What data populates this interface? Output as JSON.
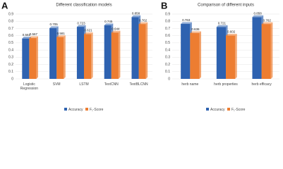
{
  "chart_data": [
    {
      "type": "bar",
      "panel_label": "A",
      "title": "Different classification models",
      "categories": [
        "Logistic Regression",
        "SVM",
        "LSTM",
        "TextCNN",
        "TextBLCNN"
      ],
      "series": [
        {
          "name": "Accuracy",
          "color": "#2e62b0",
          "values": [
            0.561,
            0.705,
            0.723,
            0.745,
            0.858
          ]
        },
        {
          "name": "F₁-Score",
          "color": "#ed7d31",
          "values": [
            0.567,
            0.581,
            0.621,
            0.644,
            0.762
          ]
        }
      ],
      "ylim": [
        0,
        0.9
      ],
      "yticks": [
        0,
        0.1,
        0.2,
        0.3,
        0.4,
        0.5,
        0.6,
        0.7,
        0.8,
        0.9
      ],
      "grid": true,
      "legend": "bottom"
    },
    {
      "type": "bar",
      "panel_label": "B",
      "title": "Comparison of different inputs",
      "categories": [
        "herb name",
        "herb properties",
        "herb efficacy"
      ],
      "series": [
        {
          "name": "Accuracy",
          "color": "#2e62b0",
          "values": [
            0.763,
            0.721,
            0.858
          ]
        },
        {
          "name": "F₁-Score",
          "color": "#ed7d31",
          "values": [
            0.636,
            0.602,
            0.762
          ]
        }
      ],
      "ylim": [
        0,
        0.9
      ],
      "yticks": [
        0,
        0.1,
        0.2,
        0.3,
        0.4,
        0.5,
        0.6,
        0.7,
        0.8,
        0.9
      ],
      "grid": true,
      "legend": "bottom"
    }
  ]
}
